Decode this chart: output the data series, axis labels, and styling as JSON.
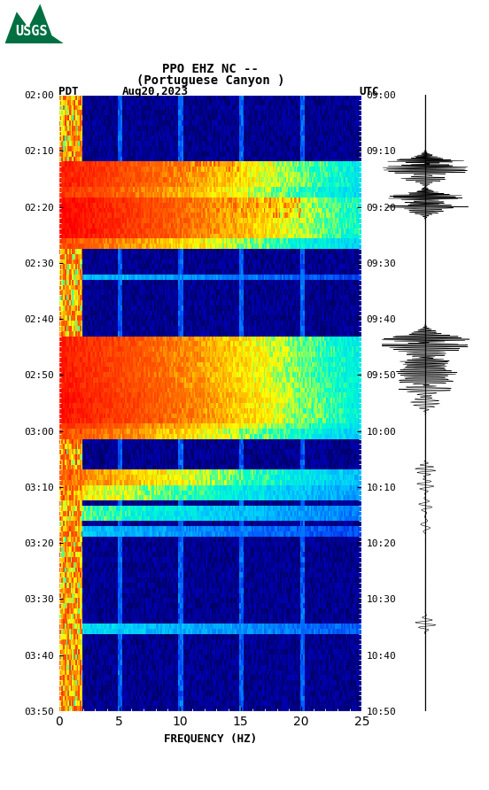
{
  "title_line1": "PPO EHZ NC --",
  "title_line2": "(Portuguese Canyon )",
  "left_label": "PDT",
  "date_label": "Aug20,2023",
  "right_label": "UTC",
  "xlabel": "FREQUENCY (HZ)",
  "freq_min": 0,
  "freq_max": 25,
  "freq_ticks": [
    0,
    5,
    10,
    15,
    20,
    25
  ],
  "left_times": [
    "02:00",
    "02:10",
    "02:20",
    "02:30",
    "02:40",
    "02:50",
    "03:00",
    "03:10",
    "03:20",
    "03:30",
    "03:40",
    "03:50"
  ],
  "right_times": [
    "09:00",
    "09:10",
    "09:20",
    "09:30",
    "09:40",
    "09:50",
    "10:00",
    "10:10",
    "10:20",
    "10:30",
    "10:40",
    "10:50"
  ],
  "n_time_steps": 120,
  "n_freq_steps": 200,
  "background_color": "#ffffff",
  "usgs_green": "#006f41",
  "spectrogram_bg": "#000080"
}
